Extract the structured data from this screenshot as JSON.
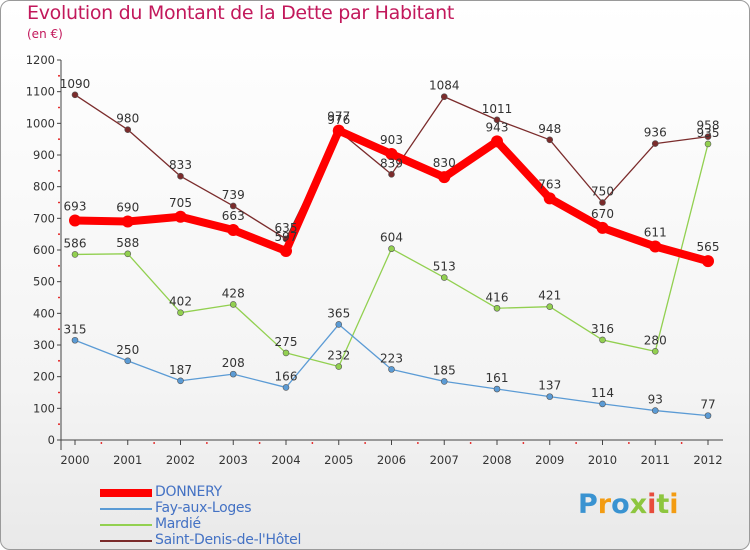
{
  "title": "Evolution du Montant de la Dette par Habitant",
  "subtitle": "(en €)",
  "logo": {
    "text": "Proxiti",
    "letters": [
      "P",
      "r",
      "o",
      "x",
      "i",
      "t",
      "i"
    ],
    "colors": [
      "#3a93d1",
      "#f39c12",
      "#3a93d1",
      "#8dc63f",
      "#e74c3c",
      "#8dc63f",
      "#f39c12"
    ]
  },
  "chart_data": {
    "type": "line",
    "x": [
      "2000",
      "2001",
      "2002",
      "2003",
      "2004",
      "2005",
      "2006",
      "2007",
      "2008",
      "2009",
      "2010",
      "2011",
      "2012"
    ],
    "ylim": [
      0,
      1200
    ],
    "yticks": [
      0,
      100,
      200,
      300,
      400,
      500,
      600,
      700,
      800,
      900,
      1000,
      1100,
      1200
    ],
    "grid": false,
    "legend_position": "bottom-left",
    "series": [
      {
        "name": "DONNERY",
        "color": "#ff0000",
        "values": [
          693,
          690,
          705,
          663,
          597,
          977,
          903,
          830,
          943,
          763,
          670,
          611,
          565
        ],
        "labels": [
          "693",
          "690",
          "705",
          "663",
          "597",
          "977",
          "903",
          "830",
          "943",
          "763",
          "670",
          "611",
          "565"
        ]
      },
      {
        "name": "Fay-aux-Loges",
        "color": "#5b9bd5",
        "values": [
          315,
          250,
          187,
          208,
          166,
          365,
          223,
          185,
          161,
          137,
          114,
          93,
          77
        ],
        "labels": [
          "315",
          "250",
          "187",
          "208",
          "166",
          "365",
          "223",
          "185",
          "161",
          "137",
          "114",
          "93",
          "77"
        ]
      },
      {
        "name": "Mardié",
        "color": "#92d050",
        "values": [
          586,
          588,
          402,
          428,
          275,
          232,
          604,
          513,
          416,
          421,
          316,
          280,
          935
        ],
        "labels": [
          "586",
          "588",
          "402",
          "428",
          "275",
          "232",
          "604",
          "513",
          "416",
          "421",
          "316",
          "280",
          "935"
        ]
      },
      {
        "name": "Saint-Denis-de-l'Hôtel",
        "color": "#7b2c2c",
        "values": [
          1090,
          980,
          833,
          739,
          635,
          976,
          839,
          1084,
          1011,
          948,
          750,
          936,
          958
        ],
        "labels": [
          "1090",
          "980",
          "833",
          "739",
          "635",
          "976",
          "839",
          "1084",
          "1011",
          "948",
          "750",
          "936",
          "958"
        ]
      }
    ]
  }
}
